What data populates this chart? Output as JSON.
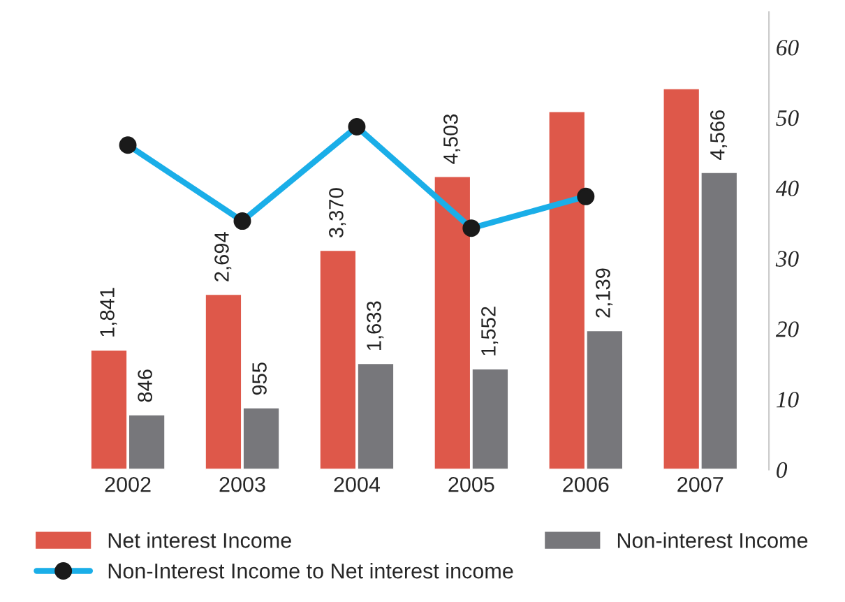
{
  "chart_data": {
    "type": "bar",
    "categories": [
      "2002",
      "2003",
      "2004",
      "2005",
      "2006",
      "2007"
    ],
    "series": [
      {
        "name": "Net interest Income",
        "color": "#de584a",
        "values": [
          1841,
          2694,
          3370,
          4503,
          5500,
          5850
        ],
        "value_labels": [
          "1,841",
          "2,694",
          "3,370",
          "4,503",
          null,
          null
        ]
      },
      {
        "name": "Non-interest Income",
        "color": "#77777b",
        "values": [
          846,
          955,
          1633,
          1552,
          2139,
          4566
        ],
        "value_labels": [
          "846",
          "955",
          "1,633",
          "1,552",
          "2,139",
          "4,566"
        ]
      },
      {
        "name": "Non-Interest Income to Net interest income",
        "type": "line",
        "axis": "y2",
        "color": "#1aaee8",
        "marker": "circle",
        "values": [
          46.1,
          35.3,
          48.7,
          34.3,
          38.8,
          null
        ]
      }
    ],
    "y2lim": [
      0,
      65
    ],
    "y2ticks": [
      0,
      10,
      20,
      30,
      40,
      50,
      60
    ],
    "grid": false,
    "legend": "bottom"
  }
}
